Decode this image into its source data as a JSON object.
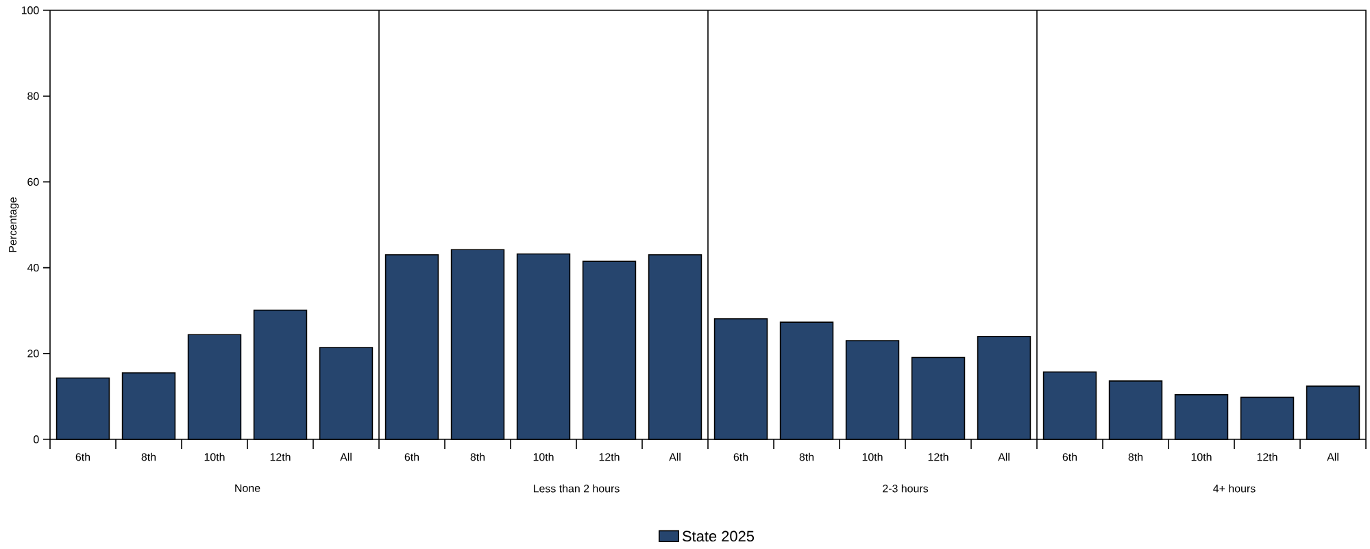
{
  "chart_data": {
    "type": "bar",
    "ylabel": "Percentage",
    "categories": [
      "6th",
      "8th",
      "10th",
      "12th",
      "All",
      "6th",
      "8th",
      "10th",
      "12th",
      "All",
      "6th",
      "8th",
      "10th",
      "12th",
      "All",
      "6th",
      "8th",
      "10th",
      "12th",
      "All"
    ],
    "series": [
      {
        "name": "State 2025",
        "color": "#26456e",
        "values": [
          14.3,
          15.5,
          24.4,
          30.1,
          21.4,
          43.0,
          44.2,
          43.2,
          41.5,
          43.0,
          28.1,
          27.3,
          23.0,
          19.1,
          24.0,
          15.7,
          13.6,
          10.4,
          9.8,
          12.4
        ]
      }
    ],
    "annotations": [
      "None",
      "Less than 2 hours",
      "2-3 hours",
      "4+ hours"
    ],
    "ylim": [
      0,
      100
    ],
    "yticks": [
      0,
      20,
      40,
      60,
      80,
      100
    ],
    "grid": false,
    "legend": "bottom"
  }
}
